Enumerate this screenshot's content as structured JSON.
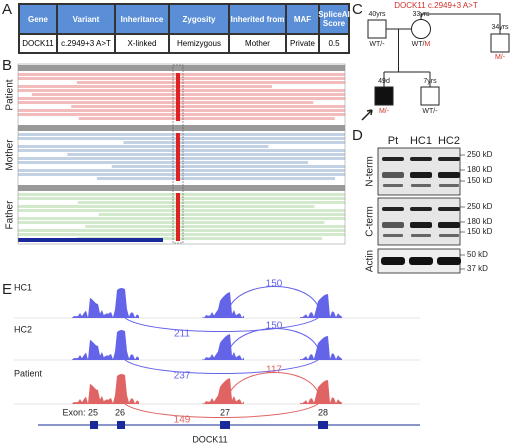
{
  "panel_labels": [
    "A",
    "B",
    "C",
    "D",
    "E"
  ],
  "table": {
    "header": [
      "Gene",
      "Variant",
      "Inheritance",
      "Zygosity",
      "Inherited from",
      "MAF",
      "SpliceAI Score"
    ],
    "rows": [
      [
        "DOCK11",
        "c.2949+3 A>T",
        "X-linked",
        "Hemizygous",
        "Mother",
        "Private",
        "0.5"
      ]
    ]
  },
  "igv": {
    "tracks": [
      "Patient",
      "Mother",
      "Father"
    ]
  },
  "pedigree": {
    "title": "DOCK11 c.2949+3 A>T",
    "members": [
      {
        "age": "40yrs",
        "genotype": [
          "WT/-"
        ]
      },
      {
        "age": "33yrs",
        "genotype": [
          "WT/",
          "M"
        ]
      },
      {
        "age": "34yrs",
        "genotype": [
          "M/-"
        ]
      },
      {
        "age": "49d",
        "genotype": [
          "M/-"
        ]
      },
      {
        "age": "7yrs",
        "genotype": [
          "WT/-"
        ]
      }
    ]
  },
  "western_blot": {
    "lanes": [
      "Pt",
      "HC1",
      "HC2"
    ],
    "blots": [
      {
        "label": "N-term",
        "markers": [
          "250 kD",
          "180 kD",
          "150 kD"
        ]
      },
      {
        "label": "C-term",
        "markers": [
          "250 kD",
          "180 kD",
          "150 kD"
        ]
      },
      {
        "label": "Actin",
        "markers": [
          "50 kD",
          "37 kD"
        ]
      }
    ]
  },
  "sashimi": {
    "tracks": [
      {
        "name": "HC1",
        "junctions": [
          150,
          211
        ]
      },
      {
        "name": "HC2",
        "junctions": [
          150,
          237
        ]
      },
      {
        "name": "Patient",
        "junctions": [
          117,
          149
        ]
      }
    ],
    "exons": [
      "Exon: 25",
      "26",
      "27",
      "28"
    ],
    "gene": "DOCK11"
  }
}
